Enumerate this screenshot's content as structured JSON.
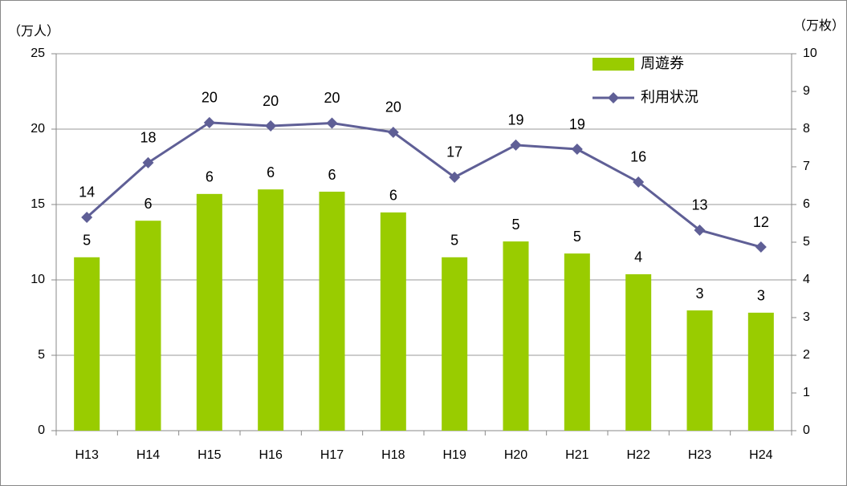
{
  "chart_data": {
    "type": "combo",
    "y_label": "（万人）",
    "y2_label": "（万枚）",
    "categories": [
      "H13",
      "H14",
      "H15",
      "H16",
      "H17",
      "H18",
      "H19",
      "H20",
      "H21",
      "H22",
      "H23",
      "H24"
    ],
    "series": [
      {
        "name": "周遊券",
        "type": "bar",
        "axis": "y2",
        "color": "#99cc00",
        "values": [
          4.6,
          5.57,
          6.28,
          6.4,
          6.34,
          5.79,
          4.6,
          5.02,
          4.7,
          4.15,
          3.19,
          3.13
        ],
        "value_labels": [
          "5",
          "6",
          "6",
          "6",
          "6",
          "6",
          "5",
          "5",
          "5",
          "4",
          "3",
          "3"
        ]
      },
      {
        "name": "利用状況",
        "type": "line",
        "axis": "y",
        "color": "#5f5f96",
        "values": [
          14.15,
          17.77,
          20.43,
          20.21,
          20.4,
          19.79,
          16.81,
          18.94,
          18.67,
          16.49,
          13.3,
          12.18
        ],
        "value_labels": [
          "14",
          "18",
          "20",
          "20",
          "20",
          "20",
          "17",
          "19",
          "19",
          "16",
          "13",
          "12"
        ]
      }
    ],
    "ylim": [
      0,
      25
    ],
    "yticks": [
      0,
      5,
      10,
      15,
      20,
      25
    ],
    "y2lim": [
      0,
      10
    ],
    "y2ticks": [
      0,
      1,
      2,
      3,
      4,
      5,
      6,
      7,
      8,
      9,
      10
    ],
    "grid": true,
    "legend": "top-right"
  }
}
